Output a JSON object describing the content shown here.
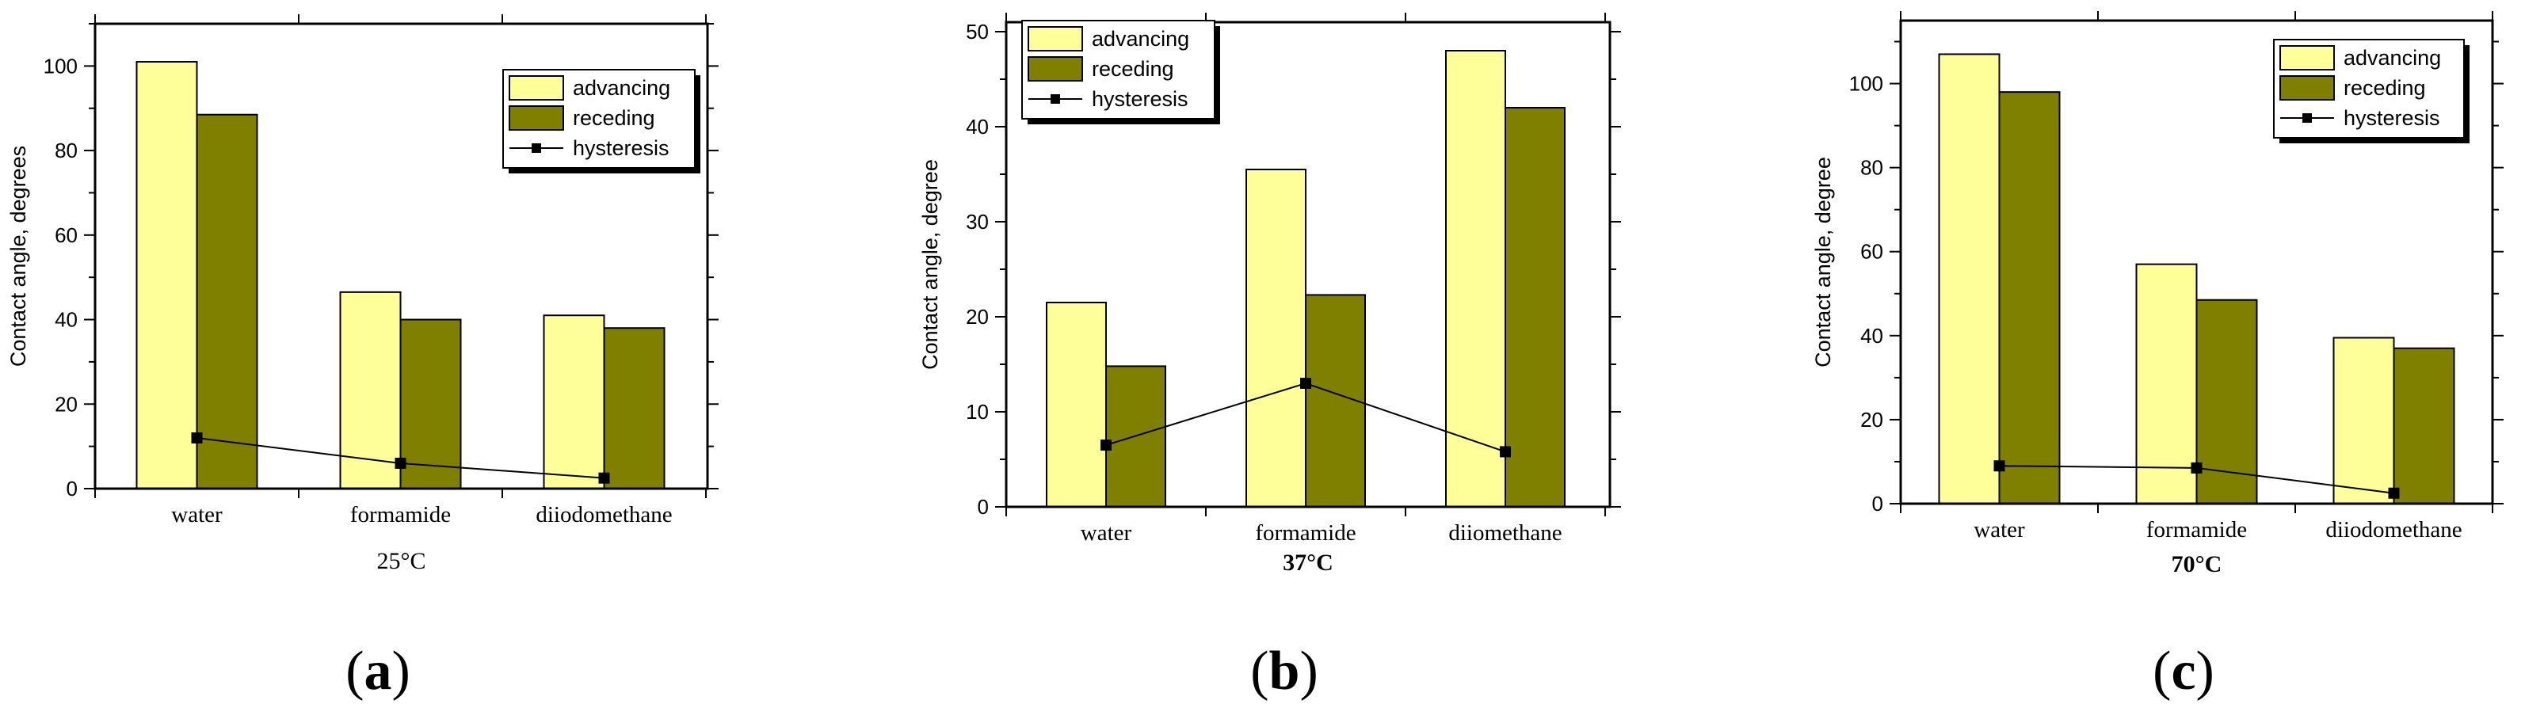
{
  "colors": {
    "advancing": "#ffff99",
    "receding": "#808000",
    "hysteresis": "#000000"
  },
  "chart_data": [
    {
      "type": "bar",
      "panel_label": {
        "open": "(",
        "letter": "a",
        "close": ")"
      },
      "categories": [
        "water",
        "formamide",
        "diiodomethane"
      ],
      "series": [
        {
          "name": "advancing",
          "values": [
            101,
            46.5,
            41
          ]
        },
        {
          "name": "receding",
          "values": [
            88.5,
            40,
            38
          ]
        }
      ],
      "line_series": {
        "name": "hysteresis",
        "values": [
          12,
          6,
          2.5
        ]
      },
      "xlabel": "25°C",
      "xlabel_bold": false,
      "ylabel": "Contact angle, degrees",
      "ylim": [
        0,
        110
      ],
      "yticks": [
        0,
        20,
        40,
        60,
        80,
        100
      ],
      "legend_position": "top-right"
    },
    {
      "type": "bar",
      "panel_label": {
        "open": "(",
        "letter": "b",
        "close": ")"
      },
      "categories": [
        "water",
        "formamide",
        "diiomethane"
      ],
      "series": [
        {
          "name": "advancing",
          "values": [
            21.5,
            35.5,
            48
          ]
        },
        {
          "name": "receding",
          "values": [
            14.8,
            22.3,
            42
          ]
        }
      ],
      "line_series": {
        "name": "hysteresis",
        "values": [
          6.5,
          13,
          5.8
        ]
      },
      "xlabel": "37°C",
      "xlabel_bold": true,
      "ylabel": "Contact angle, degree",
      "ylim": [
        0,
        51
      ],
      "yticks": [
        0,
        10,
        20,
        30,
        40,
        50
      ],
      "legend_position": "top-left"
    },
    {
      "type": "bar",
      "panel_label": {
        "open": "(",
        "letter": "c",
        "close": ")"
      },
      "categories": [
        "water",
        "formamide",
        "diiodomethane"
      ],
      "series": [
        {
          "name": "advancing",
          "values": [
            107,
            57,
            39.5
          ]
        },
        {
          "name": "receding",
          "values": [
            98,
            48.5,
            37
          ]
        }
      ],
      "line_series": {
        "name": "hysteresis",
        "values": [
          9,
          8.5,
          2.5
        ]
      },
      "xlabel": "70°C",
      "xlabel_bold": true,
      "ylabel": "Contact angle, degree",
      "ylim": [
        0,
        115
      ],
      "yticks": [
        0,
        20,
        40,
        60,
        80,
        100
      ],
      "legend_position": "top-right"
    }
  ]
}
